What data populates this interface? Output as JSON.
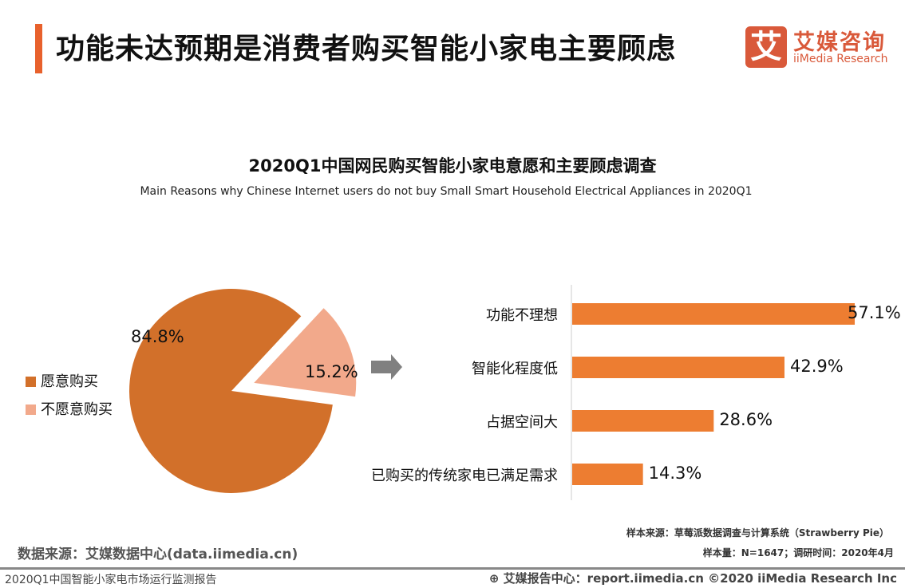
{
  "header": {
    "title": "功能未达预期是消费者购买智能小家电主要顾虑"
  },
  "logo": {
    "mark": "艾",
    "cn": "艾媒咨询",
    "en": "iiMedia Research"
  },
  "chart_data": [
    {
      "type": "pie",
      "title": "2020Q1中国网民购买智能小家电意愿和主要顾虑调查",
      "subtitle": "Main Reasons why Chinese Internet users do not buy Small Smart Household Electrical Appliances  in 2020Q1",
      "slices": [
        {
          "name": "愿意购买",
          "value": 84.8,
          "label": "84.8%",
          "color": "#d2702a"
        },
        {
          "name": "不愿意购买",
          "value": 15.2,
          "label": "15.2%",
          "color": "#f2a98b",
          "exploded": true
        }
      ],
      "legend": "left"
    },
    {
      "type": "bar",
      "orientation": "horizontal",
      "categories": [
        "功能不理想",
        "智能化程度低",
        "占据空间大",
        "已购买的传统家电已满足需求"
      ],
      "values": [
        57.1,
        42.9,
        28.6,
        14.3
      ],
      "labels": [
        "57.1%",
        "42.9%",
        "28.6%",
        "14.3%"
      ],
      "color": "#ed7d31",
      "grid": false
    }
  ],
  "arrow_icon": "right-arrow-icon",
  "footer": {
    "source": "数据来源：艾媒数据中心(data.iimedia.cn)",
    "note1": "样本来源：草莓派数据调查与计算系统（Strawberry Pie）",
    "note2": "样本量：N=1647；调研时间：2020年4月",
    "report": "2020Q1中国智能小家电市场运行监测报告",
    "right": "艾媒报告中心：report.iimedia.cn   ©2020  iiMedia Research  Inc"
  }
}
